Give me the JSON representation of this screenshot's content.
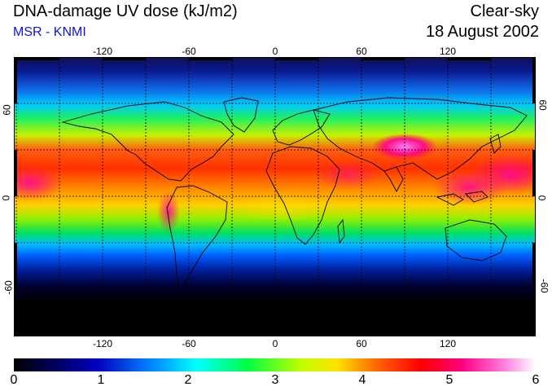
{
  "header": {
    "title": "DNA-damage UV dose (kJ/m2)",
    "source": "MSR - KNMI",
    "sky": "Clear-sky",
    "date": "18 August 2002"
  },
  "map": {
    "longitude_ticks": [
      "-120",
      "-60",
      "0",
      "60",
      "120"
    ],
    "latitude_ticks": [
      "60",
      "0",
      "-60"
    ],
    "projection": "equirectangular",
    "grid": "dashed, every 30 degrees"
  },
  "colorbar": {
    "labels": [
      "0",
      "1",
      "2",
      "3",
      "4",
      "5",
      "6"
    ],
    "min": 0,
    "max": 6,
    "colors": [
      "#000000",
      "#0000a0",
      "#0050ff",
      "#00ffff",
      "#00ff40",
      "#ffff00",
      "#ff3000",
      "#ff0080",
      "#ffffff"
    ]
  }
}
